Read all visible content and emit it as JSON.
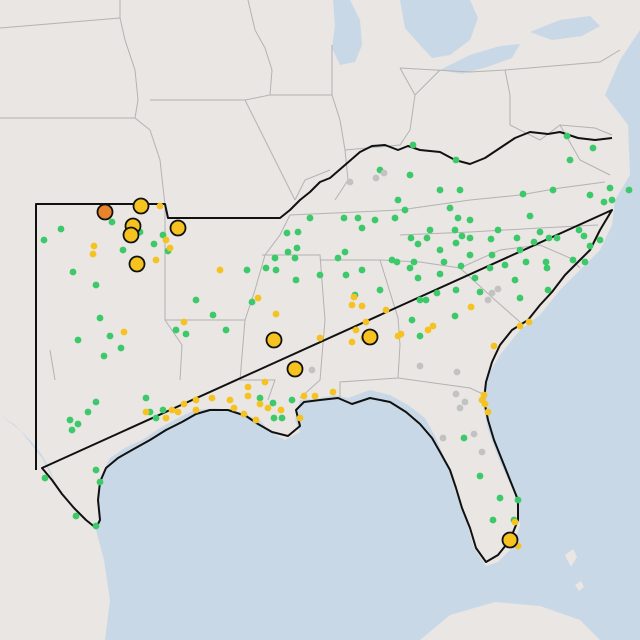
{
  "colors": {
    "water": "#c9d8e6",
    "land": "#e9e6e3",
    "state_border": "#b3b3b3",
    "region_outline": "#111111",
    "green": "#3cc96a",
    "yellow": "#f6c21f",
    "orange": "#e8842c",
    "gray": "#c2c2c2",
    "marker_stroke": "#111111"
  },
  "legend": [],
  "markers": {
    "green": 160,
    "yellow": 60,
    "gray": 14,
    "large_yellow": 9,
    "large_orange": 1
  }
}
